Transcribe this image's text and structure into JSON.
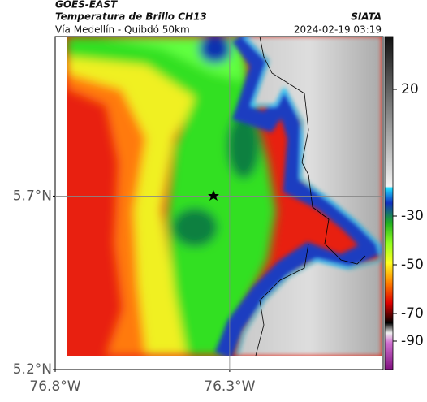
{
  "header": {
    "satellite": "GOES-EAST",
    "product": "Temperatura de Brillo CH13",
    "source": "SIATA",
    "route": "Vía Medellín - Quibdó 50km",
    "datetime": "2024-02-19 03:19"
  },
  "map": {
    "lat_lim": [
      5.2,
      6.16
    ],
    "lon_lim": [
      -76.8,
      -75.86
    ],
    "lat_ticks": [
      {
        "value": 5.7,
        "label": "5.7°N"
      },
      {
        "value": 5.2,
        "label": "5.2°N"
      }
    ],
    "lon_ticks": [
      {
        "value": -76.8,
        "label": "76.8°W"
      },
      {
        "value": -76.3,
        "label": "76.3°W"
      }
    ],
    "grid": true
  },
  "colorbar": {
    "ticks": [
      20,
      -30,
      -50,
      -70,
      -90
    ]
  }
}
